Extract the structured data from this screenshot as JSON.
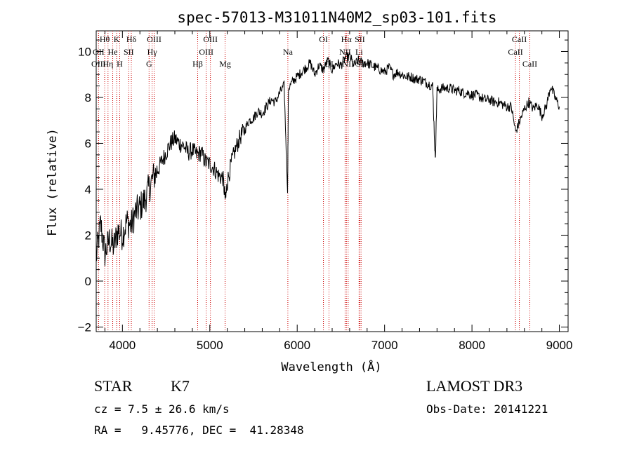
{
  "chart_data": {
    "type": "line",
    "title": "spec-57013-M31011N40M2_sp03-101.fits",
    "xlabel": "Wavelength (Å)",
    "ylabel": "Flux (relative)",
    "xlim": [
      3700,
      9100
    ],
    "ylim": [
      -2.2,
      10.9
    ],
    "x_ticks": [
      4000,
      5000,
      6000,
      7000,
      8000,
      9000
    ],
    "x_tick_labels": [
      "4000",
      "5000",
      "6000",
      "7000",
      "8000",
      "9000"
    ],
    "y_ticks": [
      -2,
      0,
      2,
      4,
      6,
      8,
      10
    ],
    "y_tick_labels": [
      "−2",
      "0",
      "2",
      "4",
      "6",
      "8",
      "10"
    ],
    "grid": false,
    "series": [
      {
        "x": [
          3700,
          3750,
          3800,
          3850,
          3900,
          3950,
          4000,
          4050,
          4100,
          4150,
          4200,
          4250,
          4300,
          4350,
          4400,
          4450,
          4500,
          4550,
          4600,
          4650,
          4700,
          4750,
          4800,
          4850,
          4900,
          4950,
          5000,
          5050,
          5100,
          5150,
          5180,
          5200,
          5250,
          5300,
          5350,
          5400,
          5450,
          5500,
          5550,
          5600,
          5650,
          5700,
          5750,
          5800,
          5850,
          5890,
          5900,
          5950,
          6000,
          6050,
          6100,
          6150,
          6200,
          6250,
          6300,
          6350,
          6400,
          6450,
          6500,
          6550,
          6600,
          6650,
          6700,
          6750,
          6800,
          6850,
          6900,
          6950,
          7000,
          7050,
          7100,
          7150,
          7200,
          7250,
          7300,
          7350,
          7400,
          7450,
          7500,
          7550,
          7580,
          7600,
          7650,
          7700,
          7750,
          7800,
          7850,
          7900,
          7950,
          8000,
          8050,
          8100,
          8150,
          8200,
          8250,
          8300,
          8350,
          8400,
          8450,
          8500,
          8550,
          8600,
          8650,
          8700,
          8750,
          8800,
          8850,
          8900,
          8950,
          9000
        ],
        "y": [
          1.0,
          2.5,
          1.2,
          1.8,
          1.5,
          2.2,
          2.0,
          2.6,
          2.4,
          3.0,
          3.2,
          3.5,
          4.0,
          4.5,
          4.8,
          5.2,
          5.6,
          6.0,
          6.2,
          6.0,
          5.9,
          5.6,
          5.7,
          5.5,
          5.6,
          5.2,
          5.1,
          4.9,
          4.6,
          4.5,
          3.5,
          4.3,
          5.2,
          5.8,
          6.3,
          6.6,
          7.0,
          7.1,
          7.4,
          7.3,
          7.6,
          7.9,
          7.8,
          8.2,
          8.5,
          4.0,
          8.4,
          8.7,
          8.9,
          9.1,
          9.3,
          9.5,
          9.0,
          9.4,
          9.2,
          9.6,
          9.2,
          9.5,
          9.4,
          9.7,
          9.8,
          9.4,
          9.6,
          9.5,
          9.5,
          9.4,
          9.3,
          9.2,
          9.1,
          9.3,
          9.0,
          9.1,
          9.0,
          8.9,
          8.9,
          8.8,
          8.8,
          8.7,
          8.6,
          8.5,
          5.2,
          8.3,
          8.4,
          8.4,
          8.4,
          8.3,
          8.3,
          8.2,
          8.2,
          8.1,
          8.1,
          8.0,
          7.9,
          7.9,
          7.8,
          7.8,
          7.7,
          7.6,
          7.6,
          6.5,
          7.0,
          7.5,
          7.8,
          7.5,
          7.7,
          7.2,
          7.6,
          8.5,
          8.0,
          7.6
        ]
      }
    ],
    "line_markers": [
      {
        "label": "Hθ",
        "wl": 3797,
        "row": 1
      },
      {
        "label": "K",
        "wl": 3934,
        "row": 1
      },
      {
        "label": "Hδ",
        "wl": 4102,
        "row": 1
      },
      {
        "label": "OIII",
        "wl": 4363,
        "row": 1
      },
      {
        "label": "OIII",
        "wl": 5007,
        "row": 1
      },
      {
        "label": "OI",
        "wl": 6300,
        "row": 1
      },
      {
        "label": "Hα",
        "wl": 6563,
        "row": 1
      },
      {
        "label": "SII",
        "wl": 6717,
        "row": 1
      },
      {
        "label": "CaII",
        "wl": 8542,
        "row": 1
      },
      {
        "label": "OII",
        "wl": 3727,
        "row": 2
      },
      {
        "label": "He",
        "wl": 3889,
        "row": 2
      },
      {
        "label": "SII",
        "wl": 4072,
        "row": 2
      },
      {
        "label": "Hγ",
        "wl": 4340,
        "row": 2
      },
      {
        "label": "OIII",
        "wl": 4959,
        "row": 2
      },
      {
        "label": "Na",
        "wl": 5893,
        "row": 2
      },
      {
        "label": "NII",
        "wl": 6548,
        "row": 2
      },
      {
        "label": "Li",
        "wl": 6708,
        "row": 2
      },
      {
        "label": "CaII",
        "wl": 8498,
        "row": 2
      },
      {
        "label": "OIII",
        "wl": 3727,
        "row": 3
      },
      {
        "label": "Hη",
        "wl": 3835,
        "row": 3
      },
      {
        "label": "H",
        "wl": 3969,
        "row": 3
      },
      {
        "label": "G",
        "wl": 4305,
        "row": 3
      },
      {
        "label": "Hβ",
        "wl": 4861,
        "row": 3
      },
      {
        "label": "Mg",
        "wl": 5175,
        "row": 3
      },
      {
        "label": "OI",
        "wl": 6364,
        "row": 3
      },
      {
        "label": "NII",
        "wl": 6583,
        "row": 3
      },
      {
        "label": "SII",
        "wl": 6731,
        "row": 3
      },
      {
        "label": "CaII",
        "wl": 8662,
        "row": 3
      }
    ],
    "marker_line_color": "#cc0000"
  },
  "info": {
    "class_label": "STAR",
    "subclass_label": "K7",
    "survey": "LAMOST DR3",
    "redshift": "cz = 7.5 ± 26.6 km/s",
    "obs_date": "Obs-Date: 20141221",
    "coords": "RA =   9.45776, DEC =  41.28348"
  }
}
